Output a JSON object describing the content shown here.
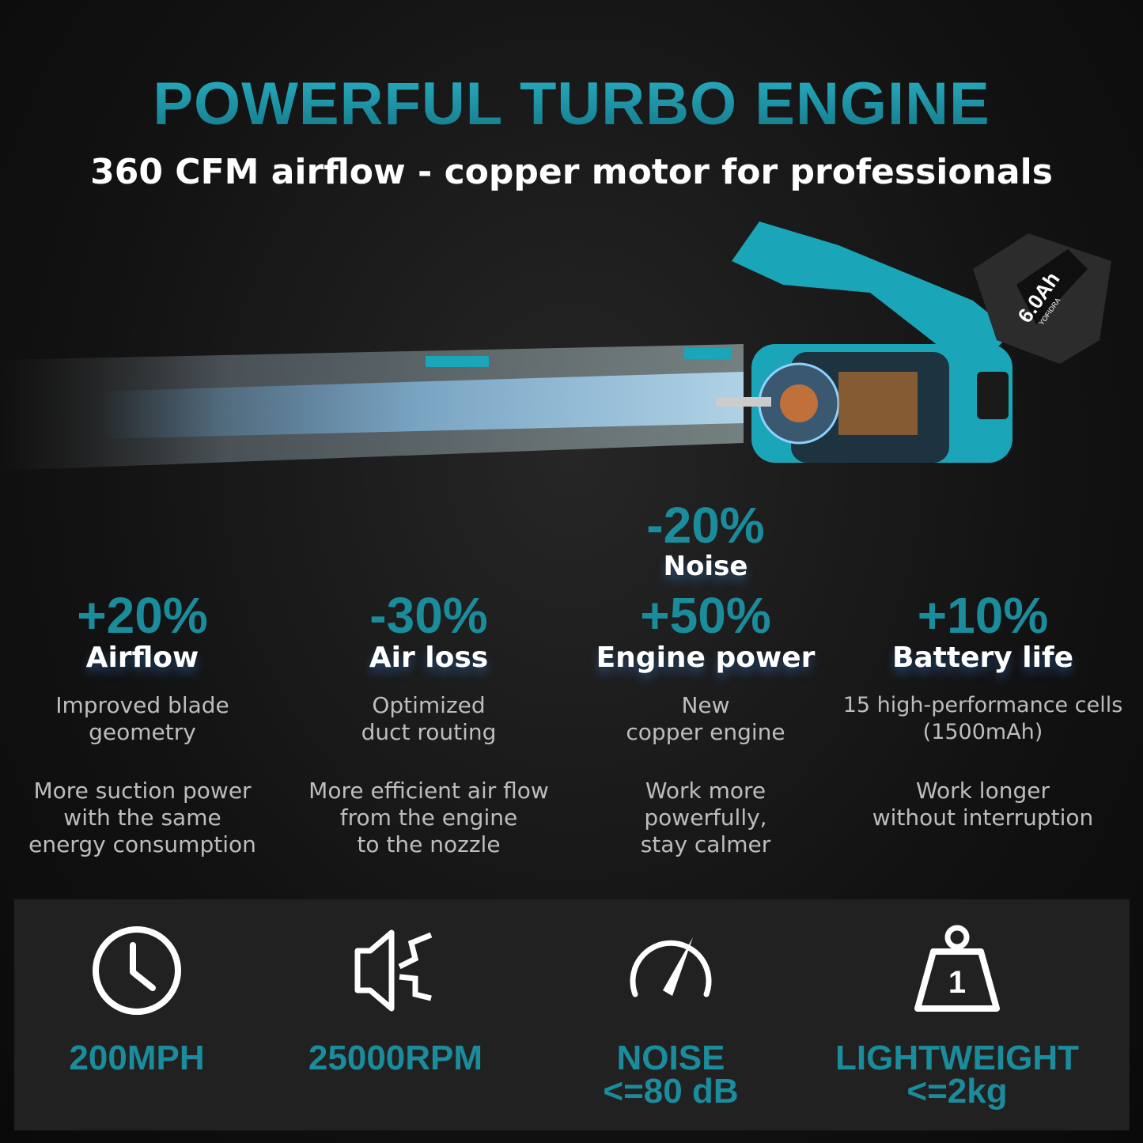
{
  "header": {
    "title": "POWERFUL TURBO ENGINE",
    "subtitle": "360 CFM airflow - copper motor for professionals"
  },
  "product": {
    "battery_label": "6.0Ah",
    "brand": "YOFIDRA",
    "accent": "#1aa5b8"
  },
  "noise_feature": {
    "value": "-20%",
    "label": "Noise"
  },
  "features": [
    {
      "value": "+20%",
      "label": "Airflow",
      "detail": [
        "Improved blade",
        "geometry"
      ],
      "benefit": [
        "More suction power",
        "with the same",
        "energy consumption"
      ]
    },
    {
      "value": "-30%",
      "label": "Air loss",
      "detail": [
        "Optimized",
        "duct routing"
      ],
      "benefit": [
        "More efficient air flow",
        "from the engine",
        "to the nozzle"
      ]
    },
    {
      "value": "+50%",
      "label": "Engine power",
      "detail": [
        "New",
        "copper engine"
      ],
      "benefit": [
        "Work more",
        "powerfully,",
        "stay calmer"
      ]
    },
    {
      "value": "+10%",
      "label": "Battery life",
      "detail": [
        "15 high-performance cells",
        "(1500mAh)"
      ],
      "benefit": [
        "Work longer",
        "without interruption"
      ]
    }
  ],
  "specs": [
    {
      "icon": "clock-icon",
      "lines": [
        "200MPH"
      ]
    },
    {
      "icon": "speaker-icon",
      "lines": [
        "25000RPM"
      ]
    },
    {
      "icon": "speedometer-icon",
      "lines": [
        "NOISE",
        "<=80 dB"
      ]
    },
    {
      "icon": "weight-icon",
      "lines": [
        "LIGHTWEIGHT",
        "<=2kg"
      ]
    }
  ],
  "colors": {
    "accent": "#1a8c9c",
    "background": "#121212",
    "panel": "#212121"
  }
}
